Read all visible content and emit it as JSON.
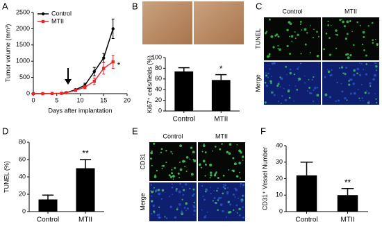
{
  "chart_data": [
    {
      "type": "line",
      "panel": "A",
      "xlabel": "Days after implantation",
      "ylabel": "Tumor volume (mm³)",
      "x": [
        0,
        2,
        4,
        6,
        7,
        9,
        11,
        13,
        15,
        17
      ],
      "series": [
        {
          "name": "Control",
          "color": "#000000",
          "values": [
            0,
            0,
            5,
            10,
            30,
            120,
            260,
            680,
            1100,
            2000
          ],
          "errors": [
            0,
            0,
            5,
            5,
            10,
            30,
            60,
            130,
            140,
            300
          ]
        },
        {
          "name": "MTII",
          "color": "#e8262a",
          "values": [
            0,
            0,
            5,
            10,
            30,
            100,
            200,
            380,
            780,
            980
          ],
          "errors": [
            0,
            0,
            5,
            5,
            10,
            25,
            50,
            100,
            180,
            200
          ]
        }
      ],
      "annotations": [
        "*"
      ],
      "xlim": [
        0,
        20
      ],
      "xticks": [
        0,
        5,
        10,
        15,
        20
      ],
      "ylim": [
        0,
        2500
      ],
      "yticks": [
        0,
        500,
        1000,
        1500,
        2000,
        2500
      ],
      "legend": "upper left"
    },
    {
      "type": "bar",
      "panel": "B",
      "ylabel": "Ki67⁺ cells/fields (%)",
      "categories": [
        "Control",
        "MTII"
      ],
      "values": [
        74,
        58
      ],
      "errors": [
        7,
        10
      ],
      "color": "#000000",
      "annotations": [
        "*"
      ],
      "ylim": [
        0,
        100
      ],
      "yticks": [
        0,
        20,
        40,
        60,
        80,
        100
      ]
    },
    {
      "type": "bar",
      "panel": "D",
      "ylabel": "TUNEL (%)",
      "categories": [
        "Control",
        "MTII"
      ],
      "values": [
        14,
        50
      ],
      "errors": [
        5,
        10
      ],
      "color": "#000000",
      "annotations": [
        "**"
      ],
      "ylim": [
        0,
        80
      ],
      "yticks": [
        0,
        20,
        40,
        60,
        80
      ]
    },
    {
      "type": "bar",
      "panel": "F",
      "ylabel": "CD31⁺ Vessel Number",
      "categories": [
        "Control",
        "MTII"
      ],
      "values": [
        22,
        10
      ],
      "errors": [
        8,
        4
      ],
      "color": "#000000",
      "annotations": [
        "**"
      ],
      "ylim": [
        0,
        40
      ],
      "yticks": [
        0,
        10,
        20,
        30,
        40
      ]
    }
  ],
  "images": {
    "C": {
      "panel": "C",
      "columns": [
        "Control",
        "MTII"
      ],
      "rows": [
        "TUNEL",
        "Merge"
      ]
    },
    "E": {
      "panel": "E",
      "columns": [
        "Control",
        "MTII"
      ],
      "rows": [
        "CD31",
        "Merge"
      ]
    }
  }
}
